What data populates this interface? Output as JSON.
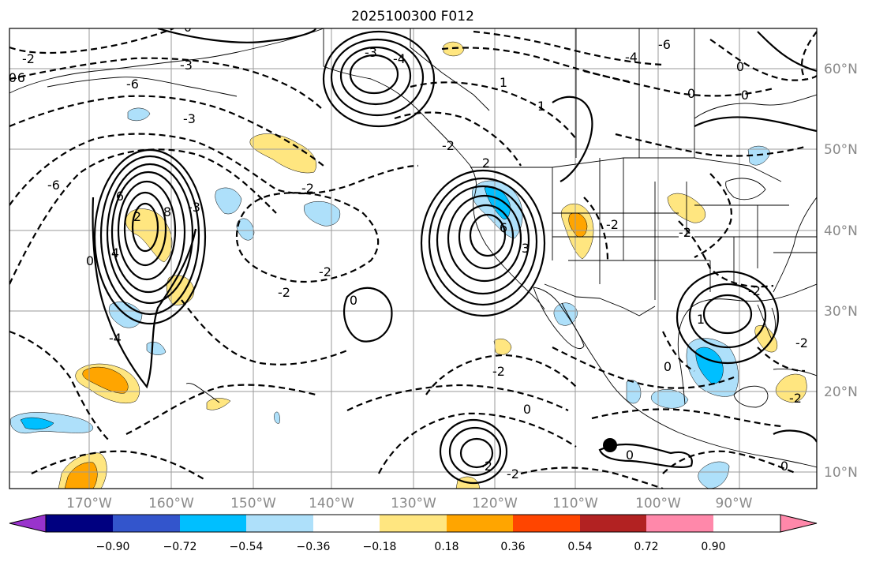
{
  "title": "2025100300 F012",
  "lon_labels": [
    "170°W",
    "160°W",
    "150°W",
    "140°W",
    "130°W",
    "120°W",
    "110°W",
    "100°W",
    "90°W"
  ],
  "lat_labels": [
    "60°N",
    "50°N",
    "40°N",
    "30°N",
    "20°N",
    "10°N"
  ],
  "colorbar": {
    "ticks": [
      "−0.90",
      "−0.72",
      "−0.54",
      "−0.36",
      "−0.18",
      "0.18",
      "0.36",
      "0.54",
      "0.72",
      "0.90"
    ],
    "colors": [
      "#9933cc",
      "#000080",
      "#3355cc",
      "#00bfff",
      "#aee0fa",
      "#ffffff",
      "#ffe680",
      "#ffa500",
      "#ff4500",
      "#b22222",
      "#ff88aa"
    ]
  },
  "map": {
    "lon_range": [
      -180,
      -80
    ],
    "lat_range": [
      8,
      65
    ],
    "contour_labels": [
      "-6",
      "-2",
      "-6",
      "-3",
      "-3",
      "-6",
      "6",
      "8",
      "4",
      "0",
      "-4",
      "-3",
      "-2",
      "-2",
      "0",
      "-3",
      "-4",
      "-2",
      "1",
      "-6",
      "-4",
      "-2",
      "0",
      "0",
      "-2",
      "0",
      "2",
      "-2",
      "6",
      "3",
      "0",
      "-2",
      "0",
      "-2",
      "-2",
      "0",
      "-2",
      "1",
      "0",
      "1",
      "0",
      "-2",
      "0",
      "-2",
      "2"
    ],
    "shaded_ranges": [
      "0.18 to 0.36",
      "0.36 to 0.54",
      "-0.36 to -0.18",
      "-0.54 to -0.36"
    ],
    "marker": "storm-center"
  }
}
